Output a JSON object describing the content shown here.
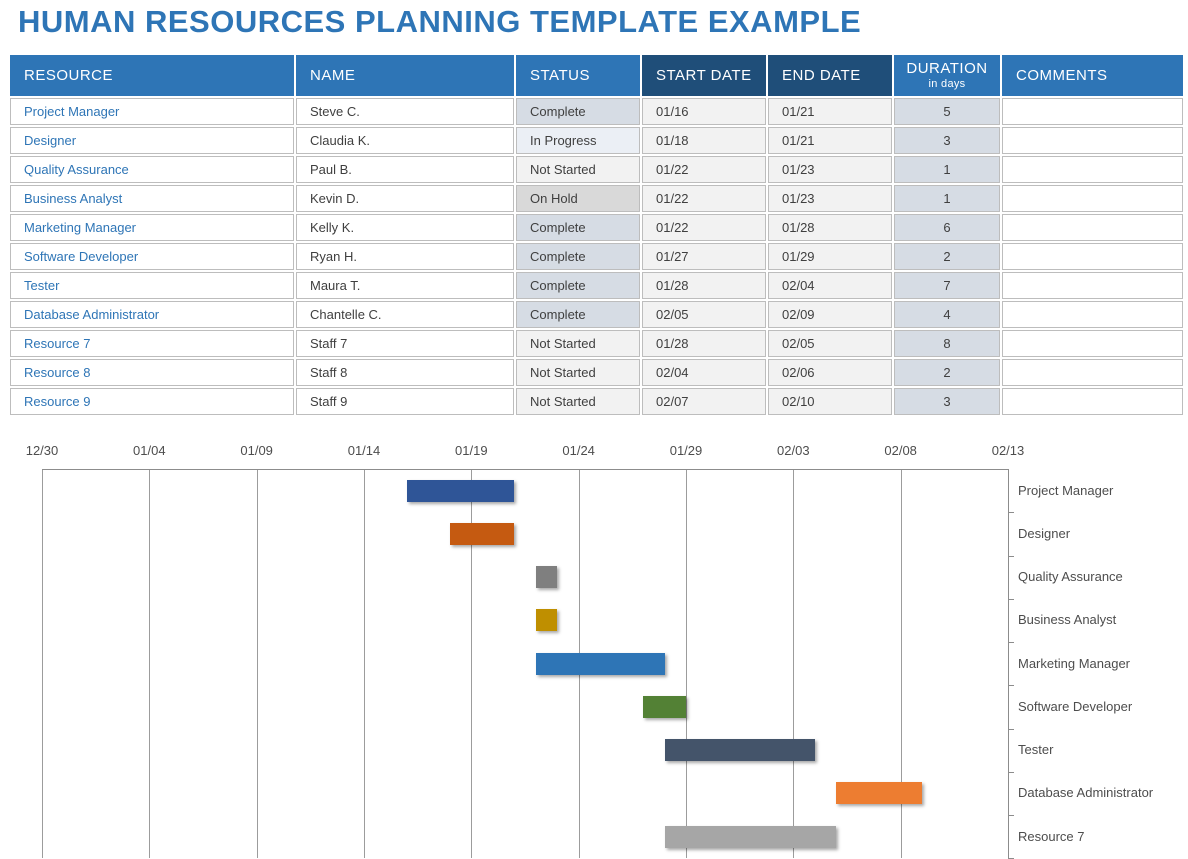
{
  "title": "HUMAN RESOURCES PLANNING TEMPLATE EXAMPLE",
  "colors": {
    "title_text": "#2E75B6",
    "header_bg": "#2E75B6",
    "header_dark_bg": "#1F4E79",
    "header_text": "#FFFFFF",
    "resource_link_text": "#2E75B6",
    "status_fills": {
      "Complete": "#D6DCE4",
      "In Progress": "#EBEFF5",
      "Not Started": "#F2F2F2",
      "On Hold": "#D9D9D9"
    },
    "date_fill": "#F2F2F2",
    "duration_fill": "#D6DCE4",
    "comments_fill": "#FFFFFF"
  },
  "table": {
    "headers": {
      "resource": "RESOURCE",
      "name": "NAME",
      "status": "STATUS",
      "start": "START DATE",
      "end": "END DATE",
      "duration": "DURATION",
      "duration_sub": "in days",
      "comments": "COMMENTS"
    },
    "rows": [
      {
        "resource": "Project Manager",
        "name": "Steve C.",
        "status": "Complete",
        "start": "01/16",
        "end": "01/21",
        "duration": "5",
        "comments": ""
      },
      {
        "resource": "Designer",
        "name": "Claudia K.",
        "status": "In Progress",
        "start": "01/18",
        "end": "01/21",
        "duration": "3",
        "comments": ""
      },
      {
        "resource": "Quality Assurance",
        "name": "Paul B.",
        "status": "Not Started",
        "start": "01/22",
        "end": "01/23",
        "duration": "1",
        "comments": ""
      },
      {
        "resource": "Business Analyst",
        "name": "Kevin D.",
        "status": "On Hold",
        "start": "01/22",
        "end": "01/23",
        "duration": "1",
        "comments": ""
      },
      {
        "resource": "Marketing Manager",
        "name": "Kelly K.",
        "status": "Complete",
        "start": "01/22",
        "end": "01/28",
        "duration": "6",
        "comments": ""
      },
      {
        "resource": "Software Developer",
        "name": "Ryan H.",
        "status": "Complete",
        "start": "01/27",
        "end": "01/29",
        "duration": "2",
        "comments": ""
      },
      {
        "resource": "Tester",
        "name": "Maura T.",
        "status": "Complete",
        "start": "01/28",
        "end": "02/04",
        "duration": "7",
        "comments": ""
      },
      {
        "resource": "Database Administrator",
        "name": "Chantelle C.",
        "status": "Complete",
        "start": "02/05",
        "end": "02/09",
        "duration": "4",
        "comments": ""
      },
      {
        "resource": "Resource 7",
        "name": "Staff 7",
        "status": "Not Started",
        "start": "01/28",
        "end": "02/05",
        "duration": "8",
        "comments": ""
      },
      {
        "resource": "Resource 8",
        "name": "Staff 8",
        "status": "Not Started",
        "start": "02/04",
        "end": "02/06",
        "duration": "2",
        "comments": ""
      },
      {
        "resource": "Resource 9",
        "name": "Staff 9",
        "status": "Not Started",
        "start": "02/07",
        "end": "02/10",
        "duration": "3",
        "comments": ""
      }
    ]
  },
  "chart_data": {
    "type": "bar",
    "subtype": "gantt-timeline",
    "title": "",
    "legend": "none",
    "grid": true,
    "x_axis": {
      "tick_labels": [
        "12/30",
        "01/04",
        "01/09",
        "01/14",
        "01/19",
        "01/24",
        "01/29",
        "02/03",
        "02/08",
        "02/13"
      ],
      "interval_days": 5,
      "position": "top"
    },
    "category_axis_position": "right",
    "bars": [
      {
        "label": "Project Manager",
        "start": "01/16",
        "end": "01/21",
        "color": "#2F5597"
      },
      {
        "label": "Designer",
        "start": "01/18",
        "end": "01/21",
        "color": "#C55A11"
      },
      {
        "label": "Quality Assurance",
        "start": "01/22",
        "end": "01/23",
        "color": "#7F7F7F"
      },
      {
        "label": "Business Analyst",
        "start": "01/22",
        "end": "01/23",
        "color": "#BF8F00"
      },
      {
        "label": "Marketing Manager",
        "start": "01/22",
        "end": "01/28",
        "color": "#2E75B6"
      },
      {
        "label": "Software Developer",
        "start": "01/27",
        "end": "01/29",
        "color": "#538135"
      },
      {
        "label": "Tester",
        "start": "01/28",
        "end": "02/04",
        "color": "#44546A"
      },
      {
        "label": "Database Administrator",
        "start": "02/05",
        "end": "02/09",
        "color": "#ED7D31"
      },
      {
        "label": "Resource 7",
        "start": "01/28",
        "end": "02/05",
        "color": "#A6A6A6"
      }
    ]
  }
}
